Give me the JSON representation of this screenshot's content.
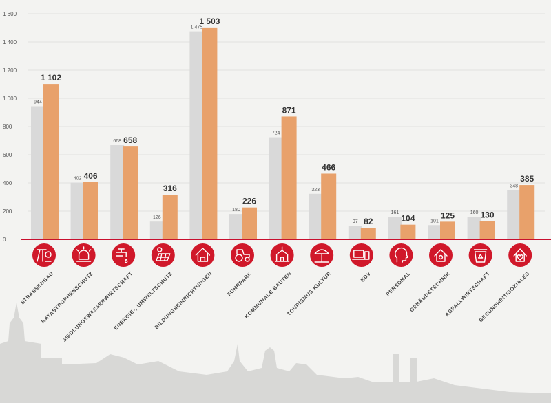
{
  "chart_data": {
    "type": "bar",
    "categories": [
      "STRASSENBAU",
      "KATASTROPHENSCHUTZ",
      "SIEDLUNGSWASSERWIRTSCHAFT",
      "ENERGIE-, UMWELTSCHUTZ",
      "BILDUNGSEINRICHTUNGEN",
      "FUHRPARK",
      "KOMMUNALE BAUTEN",
      "TOURISMUS KULTUR",
      "EDV",
      "PERSONAL",
      "GEBÄUDETECHNIK",
      "ABFALLWIRTSCHAFT",
      "GESUNDHEIT/SOZIALES"
    ],
    "series": [
      {
        "values": [
          944,
          402,
          668,
          126,
          1475,
          180,
          724,
          323,
          97,
          161,
          101,
          160,
          348
        ],
        "labels": [
          "944",
          "402",
          "668",
          "126",
          "1 475",
          "180",
          "724",
          "323",
          "97",
          "161",
          "101",
          "160",
          "348"
        ]
      },
      {
        "values": [
          1102,
          406,
          658,
          316,
          1503,
          226,
          871,
          466,
          82,
          104,
          125,
          130,
          385
        ],
        "labels": [
          "1 102",
          "406",
          "658",
          "316",
          "1 503",
          "226",
          "871",
          "466",
          "82",
          "104",
          "125",
          "130",
          "385"
        ]
      }
    ],
    "yticks": [
      0,
      200,
      400,
      600,
      800,
      1000,
      1200,
      1400,
      1600
    ],
    "ytick_labels": [
      "0",
      "200",
      "400",
      "600",
      "800",
      "1 000",
      "1 200",
      "1 400",
      "1 600"
    ],
    "ylim": [
      0,
      1600
    ],
    "grid": true,
    "legend": "none",
    "colors": {
      "series1": "#d9d9d9",
      "series2": "#e8a16b",
      "icon_circle": "#d0182a",
      "baseline": "#c8102e",
      "grid": "#cfcfcf"
    },
    "icons": [
      "road-construction-icon",
      "alarm-light-icon",
      "water-tap-icon",
      "solar-panel-icon",
      "school-house-icon",
      "tractor-icon",
      "town-hall-icon",
      "beach-umbrella-icon",
      "computer-tablet-icon",
      "person-head-icon",
      "smart-home-icon",
      "recycling-bin-icon",
      "health-care-icon"
    ]
  }
}
